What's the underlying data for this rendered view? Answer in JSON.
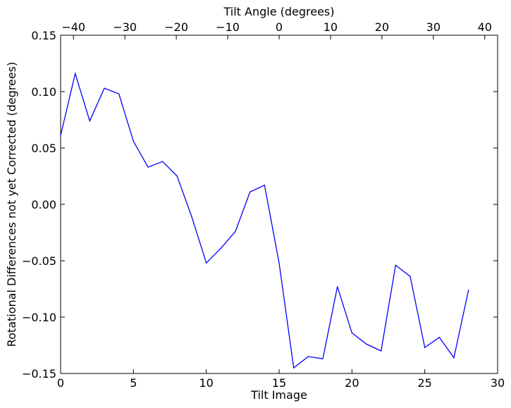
{
  "chart_data": {
    "type": "line",
    "title": "",
    "xlabel": "Tilt Image",
    "ylabel": "Rotational Differences not yet Corrected (degrees)",
    "secondary_xlabel": "Tilt Angle (degrees)",
    "xlim": [
      0,
      30
    ],
    "ylim": [
      -0.15,
      0.15
    ],
    "secondary_xlim": [
      -42.5,
      42.5
    ],
    "x_ticks": [
      "0",
      "5",
      "10",
      "15",
      "20",
      "25",
      "30"
    ],
    "y_ticks": [
      "−0.15",
      "−0.10",
      "−0.05",
      "0.00",
      "0.05",
      "0.10",
      "0.15"
    ],
    "secondary_x_ticks": [
      "−40",
      "−30",
      "−20",
      "−10",
      "0",
      "10",
      "20",
      "30",
      "40"
    ],
    "grid": false,
    "line_color": "#0000ff",
    "series": [
      {
        "x": [
          0,
          1,
          2,
          3,
          4,
          5,
          6,
          7,
          8,
          9,
          10,
          11,
          12,
          13,
          14,
          15,
          16,
          17,
          18,
          19,
          20,
          21,
          22,
          23,
          24,
          25,
          26,
          27,
          28
        ],
        "values": [
          0.061,
          0.116,
          0.074,
          0.103,
          0.098,
          0.056,
          0.033,
          0.038,
          0.025,
          -0.011,
          -0.052,
          -0.039,
          -0.024,
          0.011,
          0.017,
          -0.052,
          -0.145,
          -0.135,
          -0.137,
          -0.073,
          -0.114,
          -0.124,
          -0.13,
          -0.054,
          -0.064,
          -0.127,
          -0.118,
          -0.136,
          -0.076
        ]
      }
    ]
  }
}
